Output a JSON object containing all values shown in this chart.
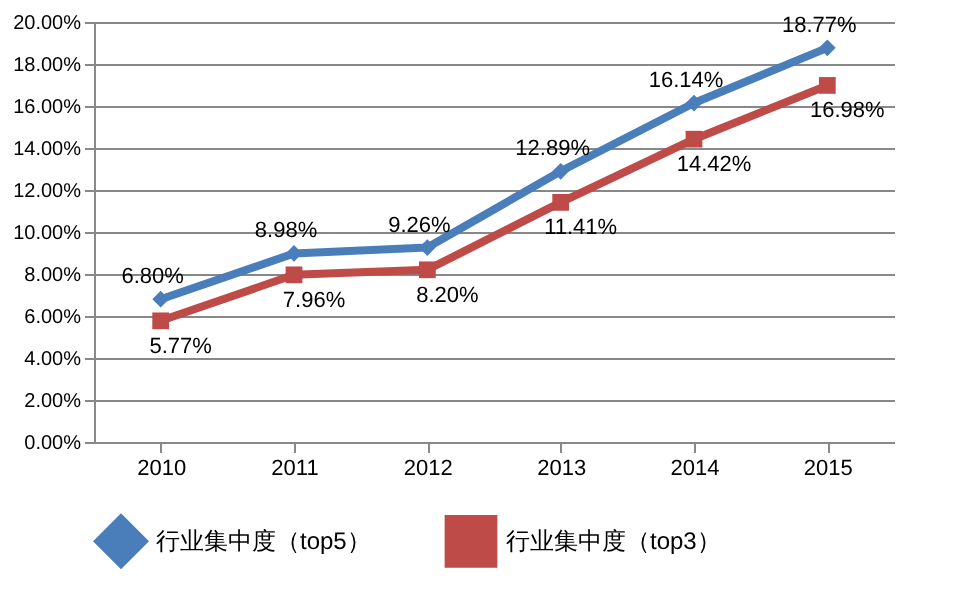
{
  "chart_data": {
    "type": "line",
    "categories": [
      "2010",
      "2011",
      "2012",
      "2013",
      "2014",
      "2015"
    ],
    "series": [
      {
        "name": "行业集中度（top5）",
        "color": "#4a7ebb",
        "marker": "diamond",
        "values": [
          6.8,
          8.98,
          9.26,
          12.89,
          16.14,
          18.77
        ],
        "value_labels": [
          "6.80%",
          "8.98%",
          "9.26%",
          "12.89%",
          "16.14%",
          "18.77%"
        ]
      },
      {
        "name": "行业集中度（top3）",
        "color": "#be4b48",
        "marker": "square",
        "values": [
          5.77,
          7.96,
          8.2,
          11.41,
          14.42,
          16.98
        ],
        "value_labels": [
          "5.77%",
          "7.96%",
          "8.20%",
          "11.41%",
          "14.42%",
          "16.98%"
        ]
      }
    ],
    "ylim": [
      0,
      20
    ],
    "yticks": [
      {
        "value": 0,
        "label": "0.00%"
      },
      {
        "value": 2,
        "label": "2.00%"
      },
      {
        "value": 4,
        "label": "4.00%"
      },
      {
        "value": 6,
        "label": "6.00%"
      },
      {
        "value": 8,
        "label": "8.00%"
      },
      {
        "value": 10,
        "label": "10.00%"
      },
      {
        "value": 12,
        "label": "12.00%"
      },
      {
        "value": 14,
        "label": "14.00%"
      },
      {
        "value": 16,
        "label": "16.00%"
      },
      {
        "value": 18,
        "label": "18.00%"
      },
      {
        "value": 20,
        "label": "20.00%"
      }
    ],
    "grid": "y",
    "legend": "bottom",
    "line_style": "solid"
  }
}
